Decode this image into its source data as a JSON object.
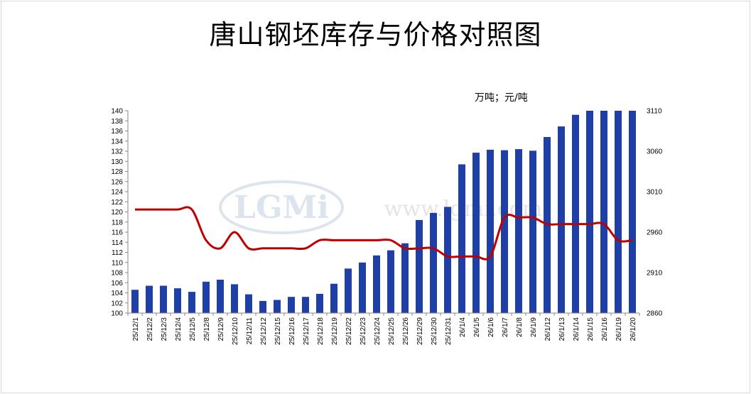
{
  "chart_data": {
    "type": "bar",
    "title": "唐山钢坯库存与价格对照图",
    "units_label": "万吨；元/吨",
    "watermark": {
      "logo": "LGMi",
      "url": "www.lgmi.com"
    },
    "categories": [
      "25/12/1",
      "25/12/2",
      "25/12/3",
      "25/12/4",
      "25/12/5",
      "25/12/8",
      "25/12/9",
      "25/12/10",
      "25/12/11",
      "25/12/12",
      "25/12/15",
      "25/12/16",
      "25/12/17",
      "25/12/18",
      "25/12/19",
      "25/12/22",
      "25/12/23",
      "25/12/24",
      "25/12/25",
      "25/12/26",
      "25/12/29",
      "25/12/30",
      "25/12/31",
      "26/1/4",
      "26/1/5",
      "26/1/6",
      "26/1/7",
      "26/1/8",
      "26/1/9",
      "26/1/12",
      "26/1/13",
      "26/1/14",
      "26/1/15",
      "26/1/16",
      "26/1/19",
      "26/1/20"
    ],
    "series": [
      {
        "type": "bar",
        "axis": "left",
        "color": "#1f3fa8",
        "values": [
          104.6,
          105.4,
          105.4,
          104.9,
          104.2,
          106.2,
          106.6,
          105.7,
          103.7,
          102.4,
          102.6,
          103.2,
          103.2,
          103.8,
          105.8,
          108.8,
          110.0,
          111.4,
          112.4,
          113.8,
          118.4,
          119.8,
          121.0,
          129.4,
          131.7,
          132.3,
          132.2,
          132.4,
          132.1,
          134.8,
          136.9,
          139.2,
          140.0,
          140.0,
          140.0,
          140.0
        ]
      },
      {
        "type": "line",
        "axis": "right",
        "color": "#c00000",
        "values": [
          2988,
          2988,
          2988,
          2988,
          2988,
          2950,
          2940,
          2960,
          2940,
          2940,
          2940,
          2940,
          2940,
          2950,
          2950,
          2950,
          2950,
          2950,
          2950,
          2940,
          2940,
          2940,
          2930,
          2930,
          2930,
          2930,
          2978,
          2978,
          2978,
          2970,
          2970,
          2970,
          2970,
          2970,
          2950,
          2950
        ]
      }
    ],
    "y_left": {
      "min": 100,
      "max": 140,
      "step": 2
    },
    "y_right": {
      "min": 2860,
      "max": 3110,
      "ticks": [
        2860,
        2910,
        2960,
        3010,
        3060,
        3110
      ]
    },
    "grid": false,
    "legend": "none"
  }
}
